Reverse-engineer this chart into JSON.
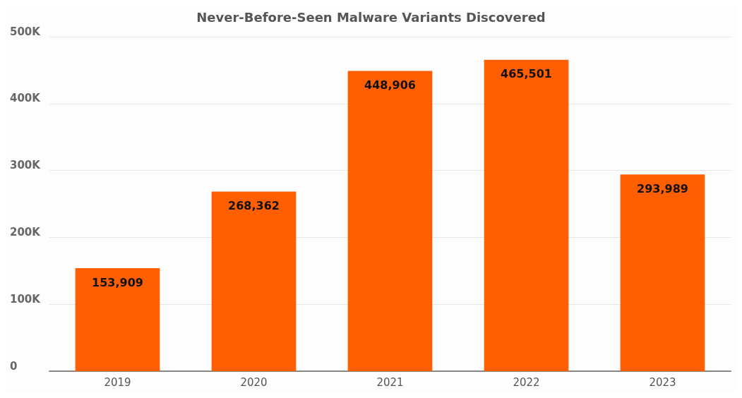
{
  "chart_data": {
    "type": "bar",
    "title": "Never-Before-Seen Malware Variants Discovered",
    "categories": [
      "2019",
      "2020",
      "2021",
      "2022",
      "2023"
    ],
    "values": [
      153909,
      268362,
      448906,
      465501,
      293989
    ],
    "color": "#ff5f00",
    "ylim": [
      0,
      500000
    ],
    "yticks": [
      0,
      {
        "value": 100000,
        "label": "100K"
      },
      {
        "value": 200000,
        "label": "200K"
      },
      {
        "value": 300000,
        "label": "300K"
      },
      {
        "value": 400000,
        "label": "400K"
      },
      {
        "value": 500000,
        "label": "500K"
      }
    ],
    "value_labels": [
      "153,909",
      "268,362",
      "448,906",
      "465,501",
      "293,989"
    ],
    "grid": "y"
  }
}
